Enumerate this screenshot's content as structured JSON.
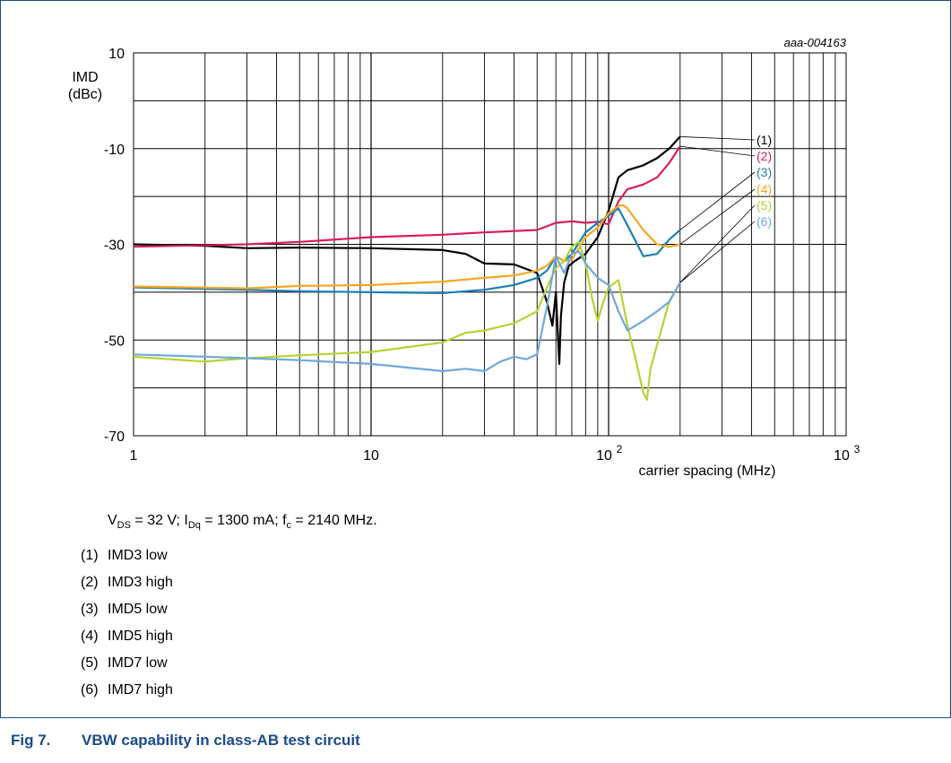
{
  "figure": {
    "doc_code": "aaa-004163",
    "conditions": {
      "vds": "= 32 V; I",
      "idq": "= 1300 mA; f",
      "fc": "= 2140 MHz."
    },
    "legend": [
      {
        "num": "(1)",
        "label": "IMD3 low"
      },
      {
        "num": "(2)",
        "label": "IMD3 high"
      },
      {
        "num": "(3)",
        "label": "IMD5 low"
      },
      {
        "num": "(4)",
        "label": "IMD5 high"
      },
      {
        "num": "(5)",
        "label": "IMD7 low"
      },
      {
        "num": "(6)",
        "label": "IMD7 high"
      }
    ],
    "caption_label": "Fig 7.",
    "caption_text": "VBW capability in class-AB test circuit"
  },
  "chart_data": {
    "type": "line",
    "xscale": "log",
    "xlim": [
      1,
      1000
    ],
    "ylim": [
      -70,
      10
    ],
    "ylabel_line1": "IMD",
    "ylabel_line2": "(dBc)",
    "xlabel": "carrier spacing (MHz)",
    "yticks": [
      "10",
      "-10",
      "-30",
      "-50",
      "-70"
    ],
    "xticks": [
      "1",
      "10",
      "10",
      "10"
    ],
    "xtick_exponents": [
      "",
      "",
      "2",
      "3"
    ],
    "grid": true,
    "series": [
      {
        "name": "(1)",
        "color": "#000000",
        "anchor": [
          200,
          -7.5
        ],
        "x": [
          1,
          2,
          3,
          5,
          10,
          20,
          25,
          30,
          40,
          50,
          55,
          58,
          60,
          62,
          63,
          65,
          68,
          72,
          80,
          90,
          100,
          110,
          120,
          140,
          160,
          180,
          200
        ],
        "y": [
          -30,
          -30.3,
          -30.8,
          -30.7,
          -30.8,
          -31.2,
          -32,
          -34,
          -34.2,
          -36,
          -42,
          -47,
          -40,
          -55,
          -45,
          -38,
          -34.5,
          -33.5,
          -32,
          -28.5,
          -23,
          -16,
          -14.5,
          -13.5,
          -12,
          -10,
          -7.5
        ]
      },
      {
        "name": "(2)",
        "color": "#d81b60",
        "anchor": [
          200,
          -9.5
        ],
        "x": [
          1,
          3,
          5,
          10,
          20,
          30,
          50,
          60,
          70,
          80,
          90,
          100,
          110,
          120,
          140,
          160,
          180,
          200
        ],
        "y": [
          -30.5,
          -30,
          -29.5,
          -28.5,
          -28,
          -27.5,
          -27,
          -25.5,
          -25.2,
          -25.5,
          -25.3,
          -25.8,
          -21,
          -18.5,
          -17.5,
          -16,
          -13,
          -9.5
        ]
      },
      {
        "name": "(3)",
        "color": "#1a7fb5",
        "anchor": [
          200,
          -27
        ],
        "x": [
          1,
          3,
          5,
          10,
          20,
          30,
          40,
          50,
          55,
          60,
          65,
          70,
          80,
          90,
          100,
          110,
          120,
          140,
          160,
          180,
          200
        ],
        "y": [
          -39,
          -39.5,
          -39.8,
          -40,
          -40.2,
          -39.5,
          -38.5,
          -37,
          -35.5,
          -32.5,
          -33.5,
          -32,
          -27.5,
          -25.5,
          -24,
          -22.5,
          -26,
          -32.5,
          -32,
          -29,
          -27
        ]
      },
      {
        "name": "(4)",
        "color": "#f5a623",
        "anchor": [
          200,
          -30
        ],
        "x": [
          1,
          3,
          5,
          10,
          20,
          30,
          40,
          50,
          55,
          60,
          65,
          70,
          80,
          90,
          100,
          110,
          115,
          120,
          140,
          160,
          180,
          200
        ],
        "y": [
          -38.8,
          -39.2,
          -38.7,
          -38.5,
          -37.8,
          -37,
          -36.5,
          -35.5,
          -34.5,
          -32.5,
          -33.5,
          -33.2,
          -28.5,
          -26.5,
          -23.5,
          -22,
          -21.8,
          -22.5,
          -27,
          -30,
          -30.5,
          -30
        ]
      },
      {
        "name": "(5)",
        "color": "#b5d334",
        "anchor": [
          200,
          -38
        ],
        "x": [
          1,
          2,
          3,
          5,
          10,
          20,
          25,
          30,
          40,
          50,
          55,
          60,
          65,
          70,
          75,
          80,
          85,
          90,
          95,
          100,
          110,
          120,
          130,
          140,
          145,
          150,
          160,
          180,
          200
        ],
        "y": [
          -53.5,
          -54.5,
          -53.8,
          -53.2,
          -52.5,
          -50.5,
          -48.5,
          -48,
          -46.5,
          -44,
          -39,
          -35,
          -33.5,
          -30.5,
          -29.5,
          -34,
          -41,
          -46,
          -42,
          -39,
          -37.5,
          -47,
          -54,
          -61,
          -62.5,
          -56,
          -51,
          -42,
          -38
        ]
      },
      {
        "name": "(6)",
        "color": "#6fa8dc",
        "anchor": [
          200,
          -38
        ],
        "x": [
          1,
          2,
          3,
          5,
          10,
          20,
          25,
          30,
          35,
          40,
          45,
          50,
          55,
          60,
          65,
          70,
          75,
          80,
          90,
          100,
          110,
          120,
          140,
          160,
          180,
          200
        ],
        "y": [
          -53,
          -53.5,
          -53.8,
          -54.2,
          -55,
          -56.5,
          -56,
          -56.5,
          -54.5,
          -53.5,
          -54,
          -53,
          -43,
          -32.5,
          -36,
          -32,
          -31.5,
          -34,
          -37,
          -38.5,
          -44,
          -48,
          -46,
          -44,
          -42,
          -38
        ]
      }
    ]
  }
}
